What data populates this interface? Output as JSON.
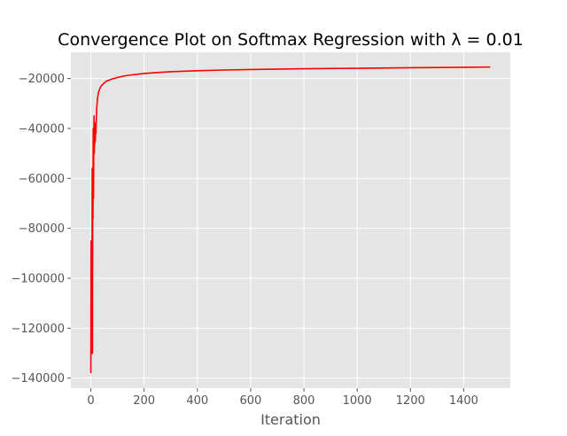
{
  "chart_data": {
    "type": "line",
    "title": "Convergence Plot on Softmax Regression with λ = 0.01",
    "xlabel": "Iteration",
    "ylabel": "",
    "xlim": [
      -75,
      1575
    ],
    "ylim": [
      -144000,
      -9500
    ],
    "x_ticks": [
      0,
      200,
      400,
      600,
      800,
      1000,
      1200,
      1400
    ],
    "y_ticks": [
      -140000,
      -120000,
      -100000,
      -80000,
      -60000,
      -40000,
      -20000
    ],
    "grid": true,
    "style": "ggplot",
    "colors": {
      "line": "#ff0000",
      "background": "#e5e5e5",
      "grid": "#ffffff"
    },
    "series": [
      {
        "x": [
          0,
          1,
          2,
          3,
          4,
          5,
          6,
          7,
          8,
          9,
          10,
          11,
          12,
          13,
          14,
          15,
          16,
          17,
          18,
          19,
          20,
          22,
          25,
          28,
          32,
          36,
          40,
          50,
          60,
          80,
          100,
          125,
          150,
          200,
          250,
          300,
          400,
          500,
          600,
          800,
          1000,
          1200,
          1400,
          1500
        ],
        "y": [
          -138000,
          -85000,
          -130000,
          -100000,
          -127000,
          -56000,
          -130000,
          -61000,
          -76000,
          -40000,
          -68000,
          -47000,
          -35000,
          -50000,
          -40000,
          -46000,
          -38000,
          -45000,
          -39000,
          -42000,
          -37500,
          -32000,
          -28000,
          -26000,
          -24500,
          -23500,
          -22800,
          -21800,
          -21000,
          -20200,
          -19600,
          -19000,
          -18600,
          -18000,
          -17600,
          -17300,
          -16900,
          -16600,
          -16400,
          -16100,
          -15900,
          -15700,
          -15500,
          -15400
        ]
      }
    ]
  }
}
